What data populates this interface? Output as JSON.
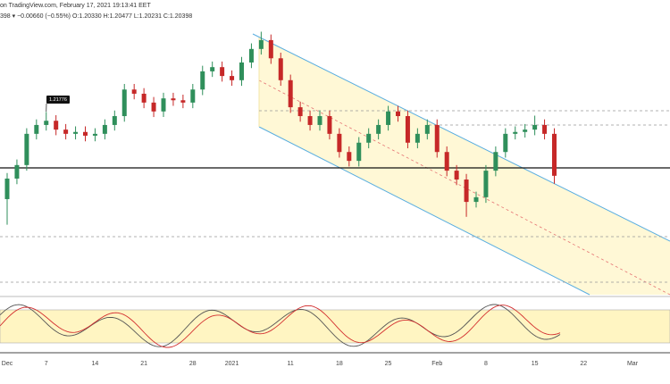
{
  "chart_data": {
    "type": "candlestick",
    "title": "on TradingView.com, February 17, 2021 19:13:41 EET",
    "subtitle": "398 ▾ −0.00660 (−0.55%) O:1.20330 H:1.20477 L:1.20231 C:1.20398",
    "categories": [
      "Dec",
      null,
      null,
      null,
      "7",
      null,
      null,
      null,
      null,
      "14",
      null,
      null,
      null,
      null,
      "21",
      null,
      null,
      null,
      null,
      "28",
      null,
      null,
      null,
      "2021",
      null,
      null,
      null,
      null,
      null,
      "11",
      null,
      null,
      null,
      null,
      "18",
      null,
      null,
      null,
      null,
      "25",
      null,
      null,
      null,
      null,
      "Feb",
      null,
      null,
      null,
      null,
      "8",
      null,
      null,
      null,
      null,
      "15",
      null,
      null,
      null,
      null,
      "22",
      null,
      null,
      null,
      null,
      "Mar"
    ],
    "open": [
      1.199,
      1.2034,
      1.2063,
      1.213,
      1.2149,
      1.2158,
      1.2139,
      1.213,
      1.2134,
      1.2126,
      1.213,
      1.2149,
      1.2168,
      1.2225,
      1.2216,
      1.2197,
      1.2178,
      1.2206,
      1.2202,
      1.2197,
      1.2225,
      1.2264,
      1.2273,
      1.2254,
      1.2245,
      1.2283,
      1.2312,
      1.2331,
      1.2292,
      1.2245,
      1.2187,
      1.2168,
      1.2149,
      1.2168,
      1.213,
      1.2091,
      1.2072,
      1.2111,
      1.213,
      1.2149,
      1.2178,
      1.2168,
      1.2111,
      1.213,
      1.2149,
      1.2091,
      1.2051,
      1.2032,
      1.1984,
      1.1994,
      1.2051,
      1.2091,
      1.213,
      1.2134,
      1.2139,
      1.2149,
      1.213,
      null,
      null,
      null,
      null,
      null,
      null,
      null,
      null
    ],
    "high": [
      1.2046,
      1.2075,
      1.2142,
      1.2161,
      1.2177,
      1.217,
      1.2151,
      1.2146,
      1.2146,
      1.2142,
      1.2161,
      1.218,
      1.2237,
      1.2237,
      1.2228,
      1.2209,
      1.2218,
      1.2218,
      1.2214,
      1.2237,
      1.2276,
      1.2285,
      1.2285,
      1.2266,
      1.2295,
      1.2324,
      1.2349,
      1.2343,
      1.2304,
      1.2257,
      1.2199,
      1.218,
      1.218,
      1.218,
      1.2142,
      1.2103,
      1.2123,
      1.2142,
      1.2161,
      1.219,
      1.219,
      1.218,
      1.2142,
      1.2161,
      1.2161,
      1.2103,
      1.2063,
      1.2044,
      1.2006,
      1.2063,
      1.2103,
      1.2142,
      1.2146,
      1.2151,
      1.2169,
      1.2161,
      1.2142,
      null,
      null,
      null,
      null,
      null,
      null,
      null,
      null
    ],
    "low": [
      1.1935,
      1.2022,
      1.2051,
      1.2118,
      1.2137,
      1.2127,
      1.2118,
      1.2118,
      1.2114,
      1.2114,
      1.2118,
      1.2137,
      1.2156,
      1.2204,
      1.2185,
      1.2166,
      1.2166,
      1.219,
      1.2185,
      1.2185,
      1.2213,
      1.2252,
      1.2242,
      1.2233,
      1.2233,
      1.2271,
      1.23,
      1.228,
      1.2233,
      1.2175,
      1.2156,
      1.2137,
      1.2137,
      1.2118,
      1.2079,
      1.206,
      1.206,
      1.2099,
      1.2118,
      1.2137,
      1.2156,
      1.2099,
      1.2099,
      1.2118,
      1.2079,
      1.2039,
      1.202,
      1.1952,
      1.1972,
      1.1982,
      1.2039,
      1.2079,
      1.2118,
      1.2122,
      1.2127,
      1.2118,
      1.2023,
      null,
      null,
      null,
      null,
      null,
      null,
      null,
      null
    ],
    "close": [
      1.2034,
      1.2063,
      1.213,
      1.2149,
      1.2158,
      1.2139,
      1.213,
      1.2134,
      1.2126,
      1.213,
      1.2149,
      1.2168,
      1.2225,
      1.2216,
      1.2197,
      1.2178,
      1.2206,
      1.2202,
      1.2197,
      1.2225,
      1.2264,
      1.2273,
      1.2254,
      1.2245,
      1.2283,
      1.2312,
      1.2331,
      1.2292,
      1.2245,
      1.2187,
      1.2168,
      1.2149,
      1.2168,
      1.213,
      1.2091,
      1.2072,
      1.2111,
      1.213,
      1.2149,
      1.2178,
      1.2168,
      1.2111,
      1.213,
      1.2149,
      1.2091,
      1.2051,
      1.2032,
      1.1984,
      1.1994,
      1.2051,
      1.2091,
      1.213,
      1.2134,
      1.2139,
      1.2149,
      1.213,
      1.204,
      null,
      null,
      null,
      null,
      null,
      null,
      null,
      null
    ],
    "up_color": "#2f8f5b",
    "down_color": "#c62828",
    "ylim": [
      1.1785,
      1.2417
    ],
    "price_label": {
      "value": 1.21776,
      "label": "1.21776"
    }
  }
}
